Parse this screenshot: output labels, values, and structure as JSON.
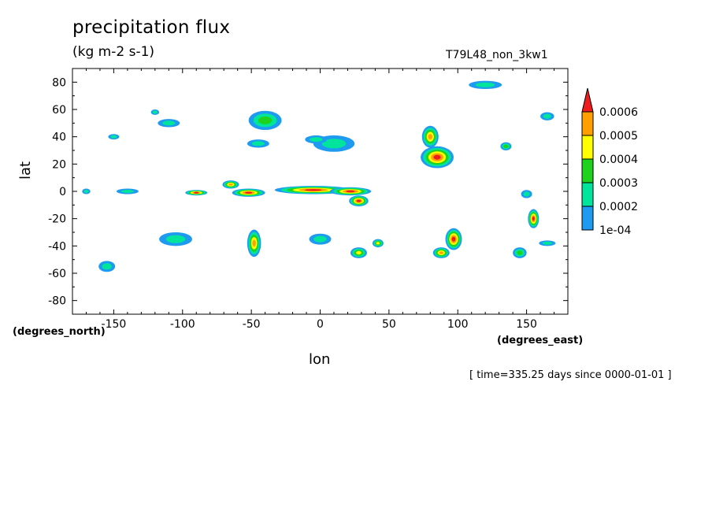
{
  "chart_data": {
    "type": "heatmap",
    "title": "precipitation flux",
    "units": "(kg m-2 s-1)",
    "run_label": "T79L48_non_3kw1",
    "xlabel": "lon",
    "ylabel": "lat",
    "x_unit_note": "(degrees_east)",
    "y_unit_note": "(degrees_north)",
    "time_label": "[ time=335.25 days since 0000-01-01 ]",
    "xlim": [
      -180,
      180
    ],
    "ylim": [
      -90,
      90
    ],
    "x_ticks": [
      -150,
      -100,
      -50,
      0,
      50,
      100,
      150
    ],
    "x_tick_labels": [
      "-150",
      "-100",
      "-50",
      "0",
      "50",
      "100",
      "150"
    ],
    "y_ticks": [
      80,
      60,
      40,
      20,
      0,
      -20,
      -40,
      -60,
      -80
    ],
    "y_tick_labels": [
      "80",
      "60",
      "40",
      "20",
      "0",
      "-20",
      "-40",
      "-60",
      "-80"
    ],
    "colorbar": {
      "levels": [
        "1e-04",
        "0.0002",
        "0.0003",
        "0.0004",
        "0.0005",
        "0.0006"
      ],
      "colors": [
        "#1e9bf0",
        "#00e49c",
        "#1ed21e",
        "#ffff00",
        "#ffa000",
        "#ee1c1c"
      ]
    },
    "features": [
      {
        "name": "itcz-atlantic",
        "level": 5,
        "lon": -5,
        "lat": 1,
        "dlon": 28,
        "dlat": 3
      },
      {
        "name": "itcz-africa",
        "level": 5,
        "lon": 22,
        "lat": 0,
        "dlon": 15,
        "dlat": 3
      },
      {
        "name": "congo-south",
        "level": 5,
        "lon": 28,
        "lat": -7,
        "dlon": 7,
        "dlat": 4
      },
      {
        "name": "itcz-w-atlantic",
        "level": 5,
        "lon": -52,
        "lat": -1,
        "dlon": 12,
        "dlat": 3
      },
      {
        "name": "itcz-e-pacific",
        "level": 5,
        "lon": -90,
        "lat": -1,
        "dlon": 8,
        "dlat": 2
      },
      {
        "name": "amazon-north",
        "level": 4,
        "lon": -65,
        "lat": 5,
        "dlon": 6,
        "dlat": 3
      },
      {
        "name": "india-bay",
        "level": 5,
        "lon": 85,
        "lat": 25,
        "dlon": 12,
        "dlat": 8
      },
      {
        "name": "se-asia-band",
        "level": 4,
        "lon": 80,
        "lat": 40,
        "dlon": 6,
        "dlat": 8
      },
      {
        "name": "s-indian-ocean",
        "level": 5,
        "lon": 97,
        "lat": -35,
        "dlon": 6,
        "dlat": 8
      },
      {
        "name": "s-indian-west",
        "level": 4,
        "lon": 88,
        "lat": -45,
        "dlon": 6,
        "dlat": 4
      },
      {
        "name": "s-pacific-spcz",
        "level": 5,
        "lon": 155,
        "lat": -20,
        "dlon": 4,
        "dlat": 7
      },
      {
        "name": "s-atlantic-band",
        "level": 4,
        "lon": -48,
        "lat": -38,
        "dlon": 5,
        "dlat": 10
      },
      {
        "name": "s-africa",
        "level": 3,
        "lon": 28,
        "lat": -45,
        "dlon": 6,
        "dlat": 4
      },
      {
        "name": "s-africa-east",
        "level": 3,
        "lon": 42,
        "lat": -38,
        "dlon": 4,
        "dlat": 3
      },
      {
        "name": "n-atlantic-storm",
        "level": 2,
        "lon": -40,
        "lat": 52,
        "dlon": 12,
        "dlat": 7
      },
      {
        "name": "n-atlantic-tail",
        "level": 1,
        "lon": -45,
        "lat": 35,
        "dlon": 8,
        "dlat": 3
      },
      {
        "name": "mediterranean",
        "level": 1,
        "lon": 10,
        "lat": 35,
        "dlon": 15,
        "dlat": 6
      },
      {
        "name": "med-east",
        "level": 1,
        "lon": -3,
        "lat": 38,
        "dlon": 8,
        "dlat": 3
      },
      {
        "name": "n-pacific-east",
        "level": 1,
        "lon": -150,
        "lat": 40,
        "dlon": 4,
        "dlat": 2
      },
      {
        "name": "n-pacific-northeast",
        "level": 1,
        "lon": -110,
        "lat": 50,
        "dlon": 8,
        "dlat": 3
      },
      {
        "name": "n-pacific-ne-b",
        "level": 1,
        "lon": -120,
        "lat": 58,
        "dlon": 3,
        "dlat": 2
      },
      {
        "name": "arctic-east",
        "level": 1,
        "lon": 120,
        "lat": 78,
        "dlon": 12,
        "dlat": 3
      },
      {
        "name": "n-pacific-west",
        "level": 2,
        "lon": 135,
        "lat": 33,
        "dlon": 4,
        "dlat": 3
      },
      {
        "name": "w-pacific-band",
        "level": 1,
        "lon": 165,
        "lat": 55,
        "dlon": 5,
        "dlat": 3
      },
      {
        "name": "s-pacific-tail",
        "level": 1,
        "lon": -105,
        "lat": -35,
        "dlon": 12,
        "dlat": 5
      },
      {
        "name": "s-pacific-east",
        "level": 1,
        "lon": -155,
        "lat": -55,
        "dlon": 6,
        "dlat": 4
      },
      {
        "name": "s-atlantic-mid",
        "level": 1,
        "lon": 0,
        "lat": -35,
        "dlon": 8,
        "dlat": 4
      },
      {
        "name": "s-indian-far",
        "level": 2,
        "lon": 145,
        "lat": -45,
        "dlon": 5,
        "dlat": 4
      },
      {
        "name": "itcz-w-pacific",
        "level": 1,
        "lon": -140,
        "lat": 0,
        "dlon": 8,
        "dlat": 2
      },
      {
        "name": "itcz-far-west",
        "level": 1,
        "lon": -170,
        "lat": 0,
        "dlon": 3,
        "dlat": 2
      },
      {
        "name": "indonesia",
        "level": 1,
        "lon": 150,
        "lat": -2,
        "dlon": 4,
        "dlat": 3
      },
      {
        "name": "e-pacific-south",
        "level": 1,
        "lon": 165,
        "lat": -38,
        "dlon": 6,
        "dlat": 2
      }
    ]
  }
}
